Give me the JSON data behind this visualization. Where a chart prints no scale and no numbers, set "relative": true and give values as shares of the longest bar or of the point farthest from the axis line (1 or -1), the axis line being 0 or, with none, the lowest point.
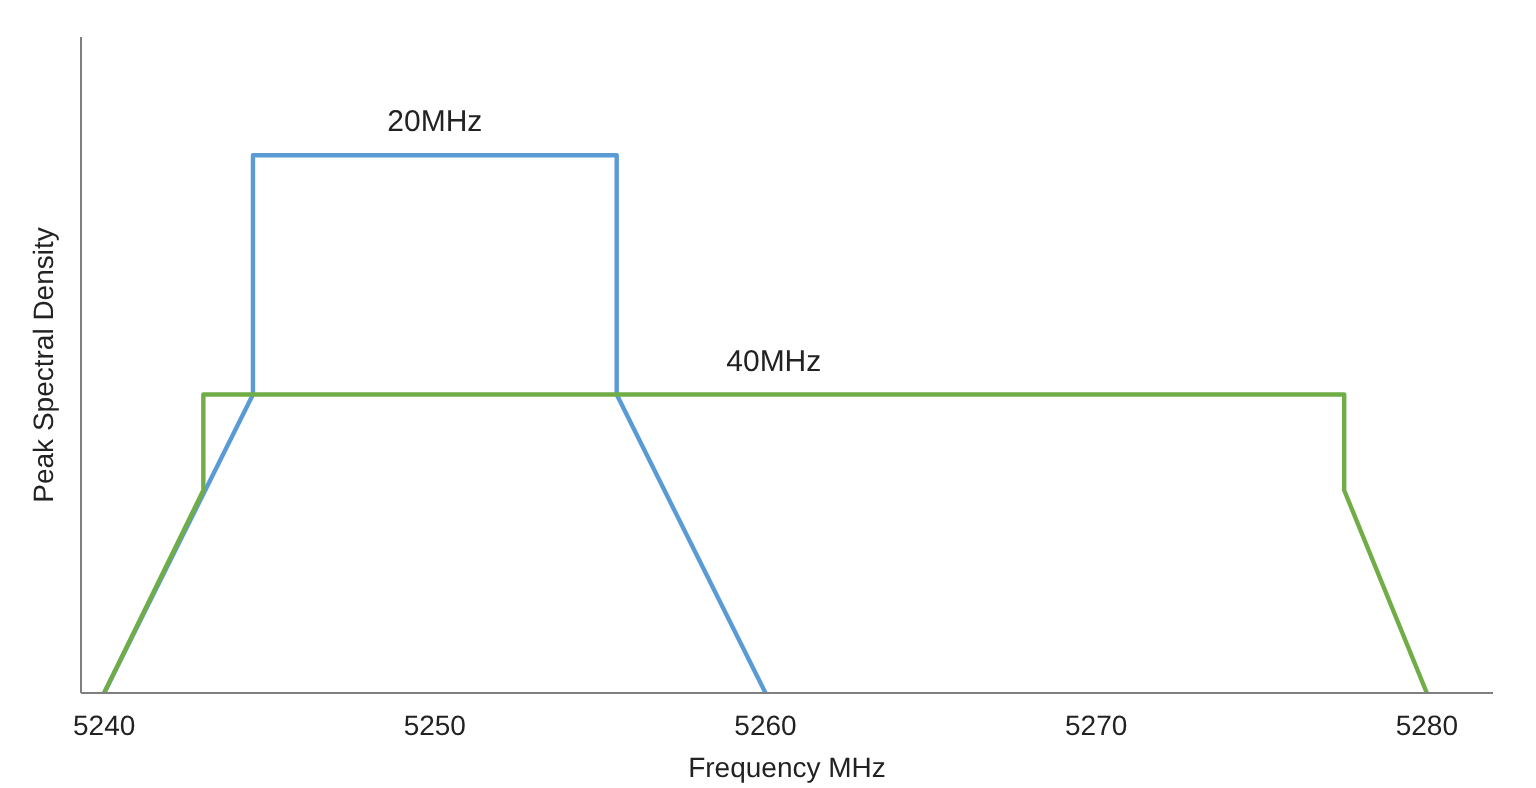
{
  "chart_data": {
    "type": "line",
    "xlabel": "Frequency MHz",
    "ylabel": "Peak Spectral Density",
    "relative": true,
    "xlim": [
      5239.3,
      5282
    ],
    "xticks": [
      5240,
      5250,
      5260,
      5270,
      5280
    ],
    "grid": false,
    "marker": "none",
    "line_style": "solid",
    "series": [
      {
        "color": "#5b9bd5",
        "x": [
          5240,
          5244.5,
          5244.5,
          5255.5,
          5255.5,
          5260
        ],
        "values": [
          0,
          0.555,
          1,
          1,
          0.555,
          0
        ]
      },
      {
        "color": "#70ad47",
        "x": [
          5240,
          5243,
          5243,
          5277.5,
          5277.5,
          5280
        ],
        "values": [
          0,
          0.377,
          0.555,
          0.555,
          0.377,
          0
        ]
      }
    ],
    "annotations": [
      "20MHz",
      "40MHz"
    ]
  }
}
